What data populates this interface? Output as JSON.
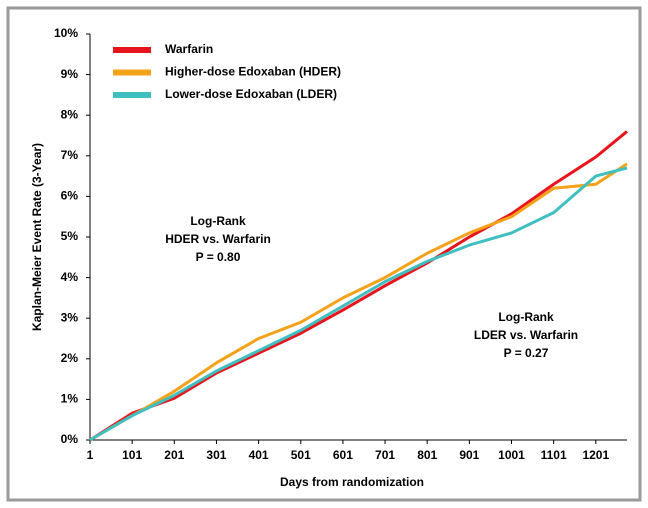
{
  "chart_data": {
    "type": "line",
    "x_label": "Days from randomization",
    "y_label": "Kaplan-Meier Event Rate (3-Year)",
    "x": [
      1,
      101,
      201,
      301,
      401,
      501,
      601,
      701,
      801,
      901,
      1001,
      1101,
      1201,
      1275
    ],
    "series": [
      {
        "name": "Warfarin",
        "color": "#e8141c",
        "values": [
          0,
          0.66,
          1.03,
          1.65,
          2.14,
          2.63,
          3.2,
          3.8,
          4.36,
          5.0,
          5.57,
          6.3,
          6.97,
          7.6
        ]
      },
      {
        "name": "Higher-dose Edoxaban (HDER)",
        "color": "#f5a21b",
        "values": [
          0,
          0.6,
          1.2,
          1.9,
          2.5,
          2.9,
          3.5,
          4.0,
          4.6,
          5.1,
          5.5,
          6.2,
          6.3,
          6.8
        ]
      },
      {
        "name": "Lower-dose Edoxaban (LDER)",
        "color": "#3fbfbf",
        "values": [
          0,
          0.6,
          1.1,
          1.7,
          2.2,
          2.7,
          3.3,
          3.9,
          4.4,
          4.8,
          5.1,
          5.6,
          6.5,
          6.7
        ]
      }
    ],
    "xlim": [
      1,
      1275
    ],
    "xticks": [
      1,
      101,
      201,
      301,
      401,
      501,
      601,
      701,
      801,
      901,
      1001,
      1101,
      1201
    ],
    "ylim": [
      0,
      10
    ],
    "yticks": [
      {
        "value": 0,
        "label": "0%"
      },
      {
        "value": 1,
        "label": "1%"
      },
      {
        "value": 2,
        "label": "2%"
      },
      {
        "value": 3,
        "label": "3%"
      },
      {
        "value": 4,
        "label": "4%"
      },
      {
        "value": 5,
        "label": "5%"
      },
      {
        "value": 6,
        "label": "6%"
      },
      {
        "value": 7,
        "label": "7%"
      },
      {
        "value": 8,
        "label": "8%"
      },
      {
        "value": 9,
        "label": "9%"
      },
      {
        "value": 10,
        "label": "10%"
      }
    ],
    "grid": false,
    "legend": "top-left",
    "annotations": [
      {
        "lines": [
          "Log-Rank",
          "HDER vs. Warfarin",
          "P = 0.80"
        ]
      },
      {
        "lines": [
          "Log-Rank",
          "LDER vs. Warfarin",
          "P = 0.27"
        ]
      }
    ]
  }
}
